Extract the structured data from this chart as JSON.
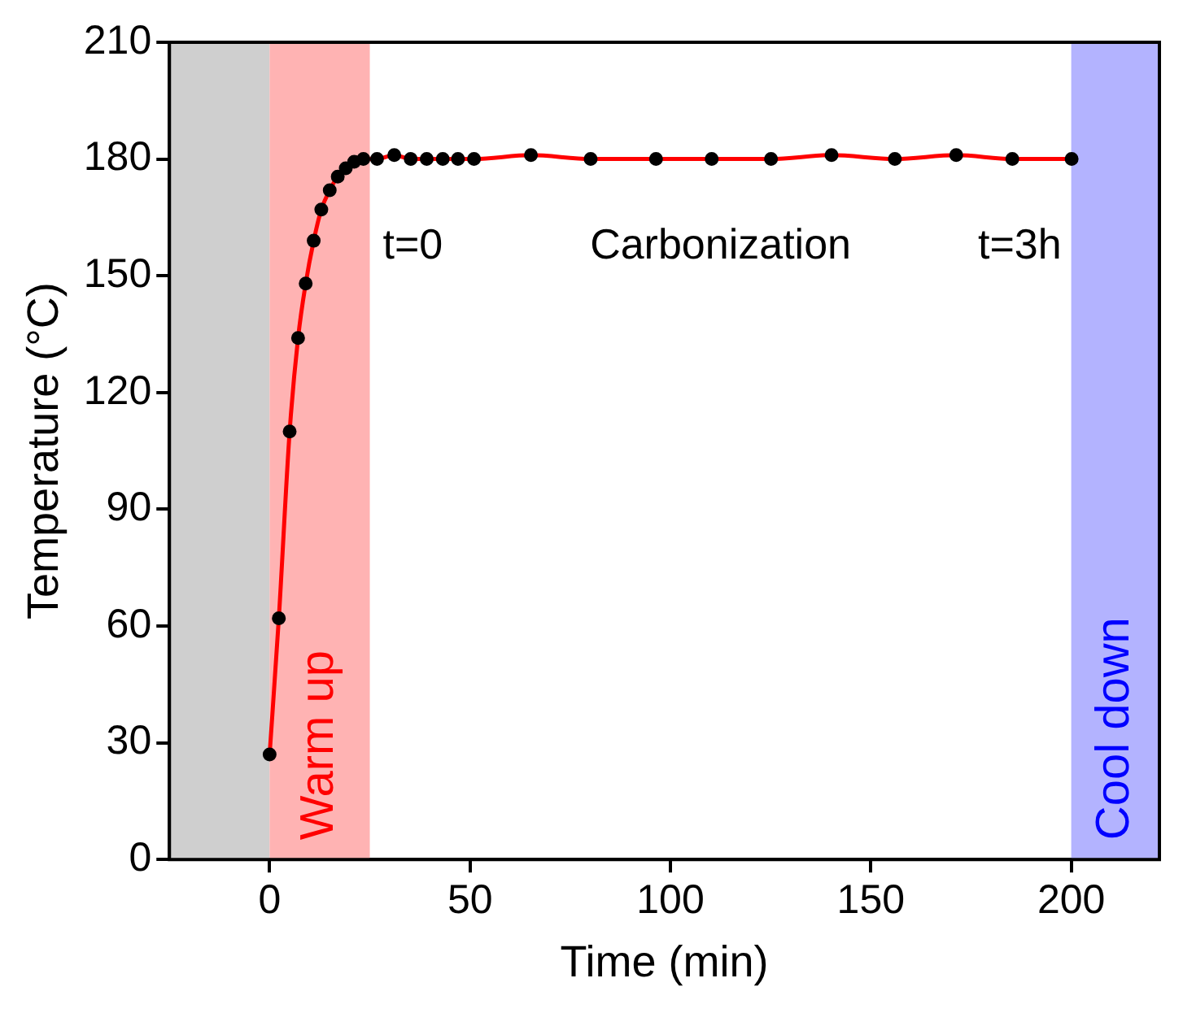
{
  "chart_data": {
    "type": "line",
    "xlabel": "Time (min)",
    "ylabel": "Temperature (°C)",
    "xlim": [
      -25,
      222
    ],
    "xticks": [
      0,
      50,
      100,
      150,
      200
    ],
    "ylim": [
      0,
      210
    ],
    "yticks": [
      0,
      30,
      60,
      90,
      120,
      150,
      180,
      210
    ],
    "grid": false,
    "legend": false,
    "marker": "circle",
    "line_style": "solid",
    "series": [
      {
        "color": "#ff0000",
        "x": [
          0,
          2.3,
          5,
          7.1,
          9,
          11,
          12.9,
          15,
          17,
          19,
          21.1,
          23.4,
          26.8,
          31.1,
          35.2,
          39.2,
          43.2,
          47,
          51,
          65.2,
          80.1,
          96.4,
          110.3,
          125.1,
          140.2,
          156,
          171.3,
          185.3,
          200.1
        ],
        "values": [
          27,
          62,
          110,
          134,
          148,
          159,
          167,
          172,
          175.5,
          177.6,
          179.3,
          180,
          180,
          181,
          180,
          180,
          180,
          180,
          180,
          181,
          180,
          180,
          180,
          180,
          181,
          180,
          181,
          180,
          180
        ]
      }
    ],
    "bands": [
      {
        "axis": "x",
        "from": -25,
        "to": 0,
        "color": "#cfcfcf"
      },
      {
        "axis": "x",
        "from": 0,
        "to": 25,
        "label": "Warm up",
        "color": "#ffb3b3"
      },
      {
        "axis": "x",
        "from": 200,
        "to": 222,
        "label": "Cool down",
        "color": "#b3b3ff"
      }
    ],
    "annotations": [
      "t=0",
      "Carbonization",
      "t=3h"
    ]
  }
}
